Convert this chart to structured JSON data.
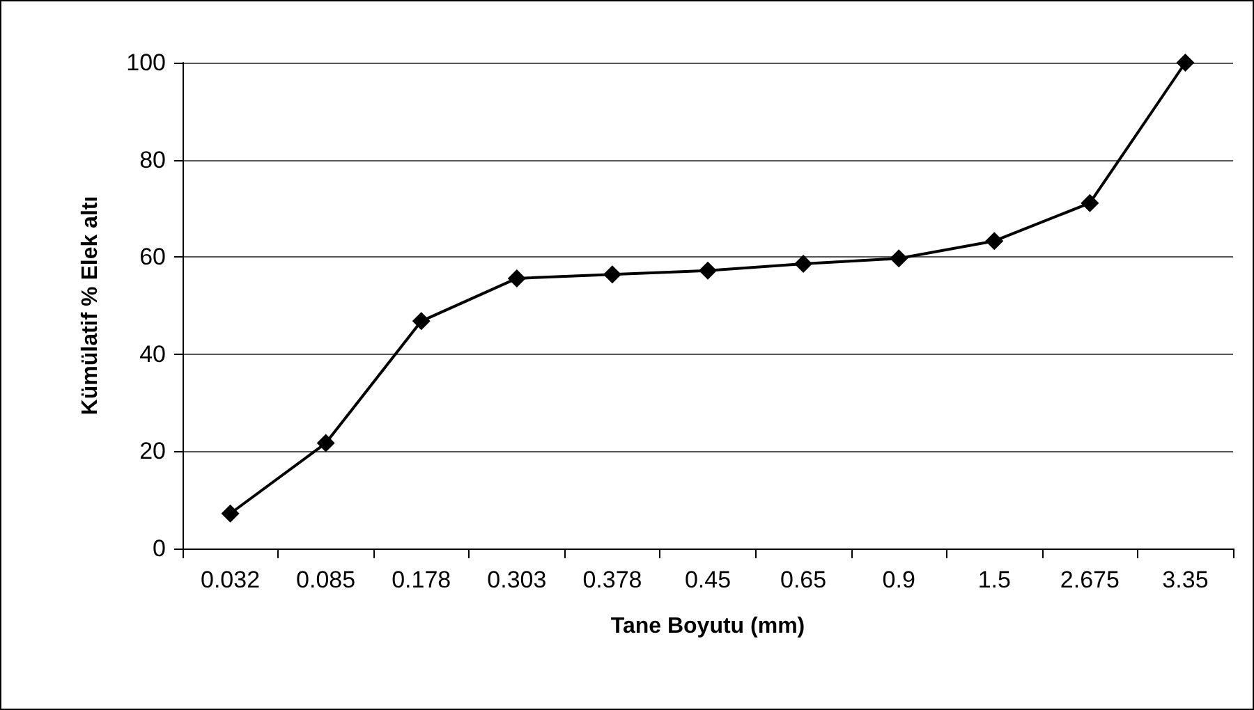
{
  "chart_data": {
    "type": "line",
    "xlabel": "Tane Boyutu (mm)",
    "ylabel": "Kümülatif % Elek altı",
    "categories": [
      "0.032",
      "0.085",
      "0.178",
      "0.303",
      "0.378",
      "0.45",
      "0.65",
      "0.9",
      "1.5",
      "2.675",
      "3.35"
    ],
    "series": [
      {
        "color": "#000000",
        "values": [
          7.2,
          21.7,
          46.8,
          55.6,
          56.4,
          57.2,
          58.6,
          59.7,
          63.3,
          71.1,
          100
        ]
      }
    ],
    "ylim": [
      0,
      100
    ],
    "yticks": [
      0,
      20,
      40,
      60,
      80,
      100
    ],
    "grid": "y",
    "marker": "diamond",
    "line_style": "solid"
  }
}
